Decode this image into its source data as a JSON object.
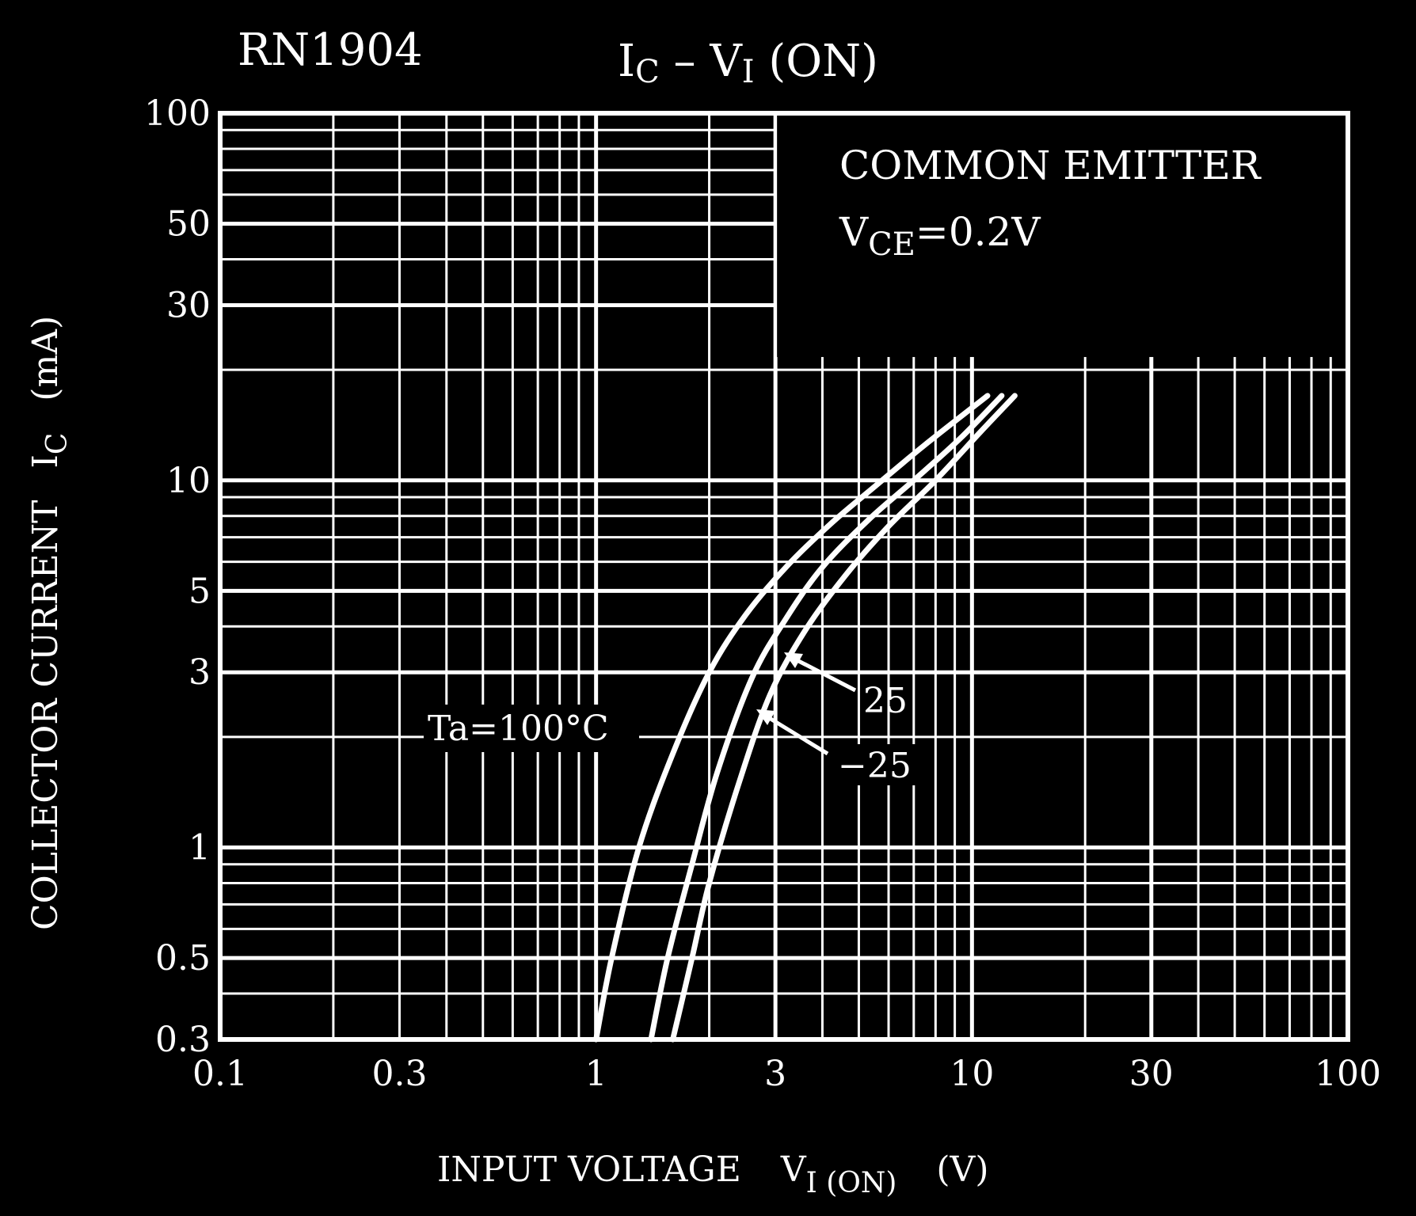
{
  "chart_data": {
    "type": "line",
    "title": {
      "device": "RN1904",
      "main": "I",
      "main_sub": "C",
      "sep": " – V",
      "sep_sub": "I",
      "suffix": " (ON)"
    },
    "xlabel": {
      "text": "INPUT VOLTAGE",
      "sym": "V",
      "sub": "I (ON)",
      "unit": "(V)"
    },
    "ylabel": {
      "text": "COLLECTOR CURRENT",
      "sym": "I",
      "sub": "C",
      "unit": "(mA)"
    },
    "x_scale": "log",
    "y_scale": "log",
    "xlim": [
      0.1,
      100
    ],
    "ylim": [
      0.3,
      100
    ],
    "x_ticks": [
      {
        "v": 0.1,
        "label": "0.1"
      },
      {
        "v": 0.3,
        "label": "0.3"
      },
      {
        "v": 1,
        "label": "1"
      },
      {
        "v": 3,
        "label": "3"
      },
      {
        "v": 10,
        "label": "10"
      },
      {
        "v": 30,
        "label": "30"
      },
      {
        "v": 100,
        "label": "100"
      }
    ],
    "y_ticks": [
      {
        "v": 0.3,
        "label": "0.3"
      },
      {
        "v": 0.5,
        "label": "0.5"
      },
      {
        "v": 1,
        "label": "1"
      },
      {
        "v": 3,
        "label": "3"
      },
      {
        "v": 5,
        "label": "5"
      },
      {
        "v": 10,
        "label": "10"
      },
      {
        "v": 30,
        "label": "30"
      },
      {
        "v": 50,
        "label": "50"
      },
      {
        "v": 100,
        "label": "100"
      }
    ],
    "grid": true,
    "conditions": {
      "line1": "COMMON EMITTER",
      "line2_sym": "V",
      "line2_sub": "CE",
      "line2_rest": "=0.2V"
    },
    "series": [
      {
        "name": "Ta=100°C",
        "x": [
          1.0,
          1.1,
          1.3,
          1.6,
          2.0,
          2.5,
          3.2,
          4.2,
          5.5,
          7.5,
          11.0
        ],
        "y": [
          0.3,
          0.5,
          1.0,
          1.8,
          3.0,
          4.3,
          5.8,
          7.6,
          9.6,
          12.5,
          17.0
        ]
      },
      {
        "name": "25",
        "x": [
          1.4,
          1.55,
          1.8,
          2.1,
          2.6,
          3.2,
          4.0,
          5.3,
          7.0,
          9.3,
          12.0
        ],
        "y": [
          0.3,
          0.5,
          0.9,
          1.6,
          2.9,
          4.2,
          5.8,
          7.8,
          10.0,
          13.0,
          17.0
        ]
      },
      {
        "name": "−25",
        "x": [
          1.6,
          1.8,
          2.0,
          2.4,
          2.9,
          3.6,
          4.6,
          6.0,
          8.0,
          10.5,
          13.0
        ],
        "y": [
          0.3,
          0.5,
          0.8,
          1.5,
          2.6,
          3.9,
          5.5,
          7.5,
          10.0,
          13.5,
          17.0
        ]
      }
    ],
    "curve_labels": [
      {
        "text": "Ta=100°C"
      },
      {
        "text": "25"
      },
      {
        "text": "−25"
      }
    ],
    "colors": {
      "background": "#000000",
      "foreground": "#ffffff"
    }
  }
}
